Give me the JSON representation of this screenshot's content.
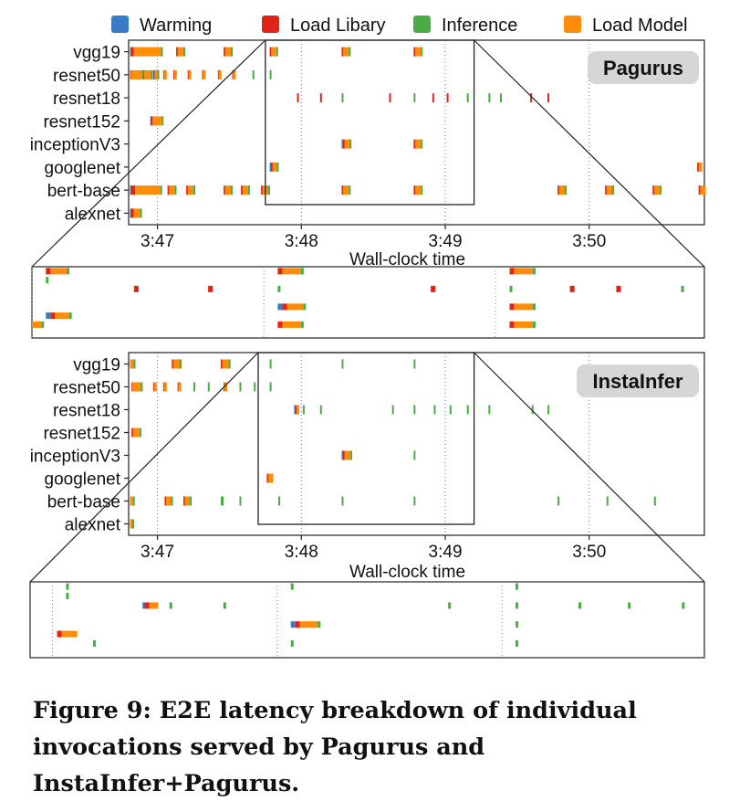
{
  "legend": [
    {
      "label": "Warming",
      "color": "#3a7cc3"
    },
    {
      "label": "Load Libary",
      "color": "#e1231a"
    },
    {
      "label": "Inference",
      "color": "#4aab47"
    },
    {
      "label": "Load Model",
      "color": "#ff8c0a"
    }
  ],
  "caption": "Figure 9: E2E latency breakdown of individual invocations served by Pagurus and InstaInfer+Pagurus.",
  "chart_data": [
    {
      "type": "timeline",
      "badge": "Pagurus",
      "xlabel": "Wall-clock time",
      "x_ticks": [
        "3:47",
        "3:48",
        "3:49",
        "3:50"
      ],
      "xlim_minutes": [
        46.8,
        50.8
      ],
      "rows": [
        "vgg19",
        "resnet50",
        "resnet18",
        "resnet152",
        "inceptionV3",
        "googlenet",
        "bert-base",
        "alexnet"
      ],
      "zoom_window_minutes": [
        47.75,
        49.2
      ],
      "events": {
        "vgg19": [
          {
            "start": 46.81,
            "segments": {
              "Warming": 0.005,
              "Load Libary": 0.02,
              "Load Model": 0.19,
              "Inference": 0.005
            }
          },
          {
            "start": 47.13,
            "segments": {
              "Load Libary": 0.01,
              "Load Model": 0.04,
              "Inference": 0.005
            }
          },
          {
            "start": 47.46,
            "segments": {
              "Load Libary": 0.01,
              "Load Model": 0.04,
              "Inference": 0.005
            }
          },
          {
            "start": 47.78,
            "segments": {
              "Load Libary": 0.01,
              "Load Model": 0.035,
              "Inference": 0.005
            }
          },
          {
            "start": 48.28,
            "segments": {
              "Load Libary": 0.01,
              "Load Model": 0.04,
              "Inference": 0.005
            }
          },
          {
            "start": 48.78,
            "segments": {
              "Load Libary": 0.01,
              "Load Model": 0.04,
              "Inference": 0.005
            }
          }
        ],
        "resnet50": [
          {
            "start": 46.81,
            "segments": {
              "Load Libary": 0.005,
              "Load Model": 0.08,
              "Inference": 0.005
            }
          },
          {
            "start": 46.9,
            "segments": {
              "Load Libary": 0.005,
              "Load Model": 0.05,
              "Inference": 0.005
            }
          },
          {
            "start": 46.97,
            "segments": {
              "Warming": 0.005,
              "Load Libary": 0.005,
              "Load Model": 0.02,
              "Inference": 0.005
            }
          },
          {
            "start": 47.04,
            "segments": {
              "Load Libary": 0.005,
              "Load Model": 0.02
            }
          },
          {
            "start": 47.11,
            "segments": {
              "Load Libary": 0.005,
              "Load Model": 0.02
            }
          },
          {
            "start": 47.21,
            "segments": {
              "Load Libary": 0.005,
              "Load Model": 0.02
            }
          },
          {
            "start": 47.31,
            "segments": {
              "Load Libary": 0.005,
              "Load Model": 0.02
            }
          },
          {
            "start": 47.42,
            "segments": {
              "Load Libary": 0.005,
              "Load Model": 0.02
            }
          },
          {
            "start": 47.52,
            "segments": {
              "Load Libary": 0.005,
              "Load Model": 0.02
            }
          },
          {
            "start": 47.66,
            "segments": {
              "Inference": 0.005
            }
          },
          {
            "start": 47.78,
            "segments": {
              "Inference": 0.005
            }
          }
        ],
        "resnet18": [
          {
            "start": 47.97,
            "segments": {
              "Load Libary": 0.01
            }
          },
          {
            "start": 48.13,
            "segments": {
              "Load Libary": 0.01
            }
          },
          {
            "start": 48.28,
            "segments": {
              "Inference": 0.005
            }
          },
          {
            "start": 48.61,
            "segments": {
              "Load Libary": 0.01
            }
          },
          {
            "start": 48.78,
            "segments": {
              "Inference": 0.005
            }
          },
          {
            "start": 48.91,
            "segments": {
              "Load Libary": 0.01
            }
          },
          {
            "start": 49.01,
            "segments": {
              "Load Libary": 0.01
            }
          },
          {
            "start": 49.15,
            "segments": {
              "Inference": 0.005
            }
          },
          {
            "start": 49.3,
            "segments": {
              "Inference": 0.005
            }
          },
          {
            "start": 49.38,
            "segments": {
              "Inference": 0.005
            }
          },
          {
            "start": 49.59,
            "segments": {
              "Load Libary": 0.01
            }
          },
          {
            "start": 49.71,
            "segments": {
              "Load Libary": 0.01
            }
          }
        ],
        "resnet152": [
          {
            "start": 46.95,
            "segments": {
              "Warming": 0.005,
              "Load Libary": 0.01,
              "Load Model": 0.065,
              "Inference": 0.005
            }
          }
        ],
        "inceptionV3": [
          {
            "start": 48.28,
            "segments": {
              "Warming": 0.01,
              "Load Libary": 0.01,
              "Load Model": 0.035,
              "Inference": 0.005
            }
          },
          {
            "start": 48.78,
            "segments": {
              "Load Libary": 0.01,
              "Load Model": 0.04,
              "Inference": 0.005
            }
          }
        ],
        "googlenet": [
          {
            "start": 47.78,
            "segments": {
              "Warming": 0.01,
              "Load Libary": 0.01,
              "Load Model": 0.03,
              "Inference": 0.005
            }
          },
          {
            "start": 50.75,
            "segments": {
              "Load Libary": 0.01,
              "Load Model": 0.025
            }
          }
        ],
        "bert-base": [
          {
            "start": 46.81,
            "segments": {
              "Warming": 0.005,
              "Load Libary": 0.03,
              "Load Model": 0.175,
              "Inference": 0.005
            }
          },
          {
            "start": 47.07,
            "segments": {
              "Load Libary": 0.01,
              "Load Model": 0.04,
              "Inference": 0.005
            }
          },
          {
            "start": 47.2,
            "segments": {
              "Load Libary": 0.01,
              "Load Model": 0.04,
              "Inference": 0.005
            }
          },
          {
            "start": 47.46,
            "segments": {
              "Load Libary": 0.01,
              "Load Model": 0.04,
              "Inference": 0.005
            }
          },
          {
            "start": 47.58,
            "segments": {
              "Load Libary": 0.01,
              "Load Model": 0.04,
              "Inference": 0.005
            }
          },
          {
            "start": 47.72,
            "segments": {
              "Load Libary": 0.01,
              "Load Model": 0.04,
              "Inference": 0.005
            }
          },
          {
            "start": 48.28,
            "segments": {
              "Load Libary": 0.01,
              "Load Model": 0.04,
              "Inference": 0.005
            }
          },
          {
            "start": 48.78,
            "segments": {
              "Load Libary": 0.01,
              "Load Model": 0.04,
              "Inference": 0.005
            }
          },
          {
            "start": 49.78,
            "segments": {
              "Load Libary": 0.01,
              "Load Model": 0.04,
              "Inference": 0.005
            }
          },
          {
            "start": 50.11,
            "segments": {
              "Load Libary": 0.01,
              "Load Model": 0.04,
              "Inference": 0.005
            }
          },
          {
            "start": 50.44,
            "segments": {
              "Load Libary": 0.01,
              "Load Model": 0.04,
              "Inference": 0.005
            }
          },
          {
            "start": 50.76,
            "segments": {
              "Load Libary": 0.01,
              "Load Model": 0.04
            }
          }
        ],
        "alexnet": [
          {
            "start": 46.81,
            "segments": {
              "Warming": 0.005,
              "Load Libary": 0.02,
              "Load Model": 0.045,
              "Inference": 0.005
            }
          }
        ]
      }
    },
    {
      "type": "timeline",
      "badge": "InstaInfer",
      "xlabel": "Wall-clock time",
      "x_ticks": [
        "3:47",
        "3:48",
        "3:49",
        "3:50"
      ],
      "xlim_minutes": [
        46.8,
        50.8
      ],
      "rows": [
        "vgg19",
        "resnet50",
        "resnet18",
        "resnet152",
        "inceptionV3",
        "googlenet",
        "bert-base",
        "alexnet"
      ],
      "zoom_window_minutes": [
        47.7,
        49.2
      ],
      "events": {
        "vgg19": [
          {
            "start": 46.81,
            "segments": {
              "Load Model": 0.025,
              "Inference": 0.005
            }
          },
          {
            "start": 47.1,
            "segments": {
              "Load Libary": 0.01,
              "Load Model": 0.045,
              "Inference": 0.005
            }
          },
          {
            "start": 47.44,
            "segments": {
              "Load Libary": 0.01,
              "Load Model": 0.045,
              "Inference": 0.005
            }
          },
          {
            "start": 47.78,
            "segments": {
              "Inference": 0.005
            }
          },
          {
            "start": 48.28,
            "segments": {
              "Inference": 0.005
            }
          },
          {
            "start": 48.78,
            "segments": {
              "Inference": 0.005
            }
          }
        ],
        "resnet50": [
          {
            "start": 46.82,
            "segments": {
              "Load Libary": 0.005,
              "Load Model": 0.06,
              "Inference": 0.005
            }
          },
          {
            "start": 46.97,
            "segments": {
              "Load Libary": 0.005,
              "Load Model": 0.02
            }
          },
          {
            "start": 47.04,
            "segments": {
              "Load Libary": 0.005,
              "Load Model": 0.02
            }
          },
          {
            "start": 47.14,
            "segments": {
              "Load Libary": 0.005,
              "Load Model": 0.02
            }
          },
          {
            "start": 47.25,
            "segments": {
              "Inference": 0.005
            }
          },
          {
            "start": 47.35,
            "segments": {
              "Inference": 0.005
            }
          },
          {
            "start": 47.46,
            "segments": {
              "Load Libary": 0.005,
              "Load Model": 0.02
            }
          },
          {
            "start": 47.57,
            "segments": {
              "Inference": 0.005
            }
          },
          {
            "start": 47.67,
            "segments": {
              "Inference": 0.005
            }
          },
          {
            "start": 47.78,
            "segments": {
              "Inference": 0.005
            }
          }
        ],
        "resnet18": [
          {
            "start": 47.95,
            "segments": {
              "Warming": 0.005,
              "Load Libary": 0.01,
              "Load Model": 0.02
            }
          },
          {
            "start": 48.01,
            "segments": {
              "Inference": 0.005
            }
          },
          {
            "start": 48.13,
            "segments": {
              "Inference": 0.005
            }
          },
          {
            "start": 48.63,
            "segments": {
              "Inference": 0.005
            }
          },
          {
            "start": 48.78,
            "segments": {
              "Inference": 0.005
            }
          },
          {
            "start": 48.92,
            "segments": {
              "Inference": 0.005
            }
          },
          {
            "start": 49.03,
            "segments": {
              "Inference": 0.005
            }
          },
          {
            "start": 49.15,
            "segments": {
              "Inference": 0.005
            }
          },
          {
            "start": 49.3,
            "segments": {
              "Inference": 0.005
            }
          },
          {
            "start": 49.6,
            "segments": {
              "Inference": 0.005
            }
          },
          {
            "start": 49.71,
            "segments": {
              "Inference": 0.005
            }
          }
        ],
        "resnet152": [
          {
            "start": 46.82,
            "segments": {
              "Load Libary": 0.01,
              "Load Model": 0.045,
              "Inference": 0.005
            }
          }
        ],
        "inceptionV3": [
          {
            "start": 48.28,
            "segments": {
              "Warming": 0.01,
              "Load Libary": 0.01,
              "Load Model": 0.04,
              "Inference": 0.005
            }
          },
          {
            "start": 48.78,
            "segments": {
              "Inference": 0.005
            }
          }
        ],
        "googlenet": [
          {
            "start": 47.76,
            "segments": {
              "Load Libary": 0.01,
              "Load Model": 0.035
            }
          }
        ],
        "bert-base": [
          {
            "start": 46.81,
            "segments": {
              "Load Model": 0.02,
              "Inference": 0.005
            }
          },
          {
            "start": 47.05,
            "segments": {
              "Load Libary": 0.01,
              "Load Model": 0.035,
              "Inference": 0.005
            }
          },
          {
            "start": 47.18,
            "segments": {
              "Load Libary": 0.01,
              "Load Model": 0.035,
              "Inference": 0.005
            }
          },
          {
            "start": 47.44,
            "segments": {
              "Inference": 0.02
            }
          },
          {
            "start": 47.57,
            "segments": {
              "Inference": 0.005
            }
          },
          {
            "start": 47.84,
            "segments": {
              "Inference": 0.005
            }
          },
          {
            "start": 48.28,
            "segments": {
              "Inference": 0.005
            }
          },
          {
            "start": 48.78,
            "segments": {
              "Inference": 0.005
            }
          },
          {
            "start": 49.78,
            "segments": {
              "Inference": 0.005
            }
          },
          {
            "start": 50.12,
            "segments": {
              "Inference": 0.005
            }
          },
          {
            "start": 50.45,
            "segments": {
              "Inference": 0.005
            }
          }
        ],
        "alexnet": [
          {
            "start": 46.81,
            "segments": {
              "Load Model": 0.015,
              "Inference": 0.005
            }
          }
        ]
      }
    }
  ]
}
